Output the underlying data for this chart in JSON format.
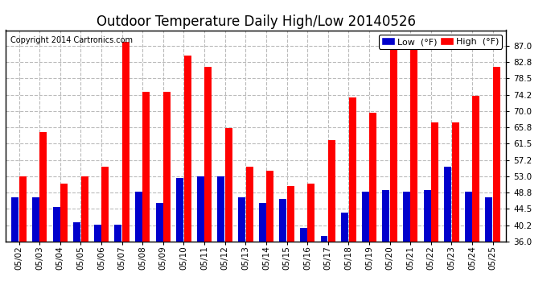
{
  "title": "Outdoor Temperature Daily High/Low 20140526",
  "copyright": "Copyright 2014 Cartronics.com",
  "dates": [
    "05/02",
    "05/03",
    "05/04",
    "05/05",
    "05/06",
    "05/07",
    "05/08",
    "05/09",
    "05/10",
    "05/11",
    "05/12",
    "05/13",
    "05/14",
    "05/15",
    "05/16",
    "05/17",
    "05/18",
    "05/19",
    "05/20",
    "05/21",
    "05/22",
    "05/23",
    "05/24",
    "05/25"
  ],
  "highs": [
    53.0,
    64.5,
    51.0,
    53.0,
    55.5,
    88.0,
    75.0,
    75.0,
    84.5,
    81.5,
    65.5,
    55.5,
    54.5,
    50.5,
    51.0,
    62.5,
    73.5,
    69.5,
    87.0,
    87.0,
    67.0,
    67.0,
    74.0,
    81.5
  ],
  "lows": [
    47.5,
    47.5,
    45.0,
    41.0,
    40.5,
    40.5,
    49.0,
    46.0,
    52.5,
    53.0,
    53.0,
    47.5,
    46.0,
    47.0,
    39.5,
    37.5,
    43.5,
    49.0,
    49.5,
    49.0,
    49.5,
    55.5,
    49.0,
    47.5
  ],
  "high_color": "#ff0000",
  "low_color": "#0000cc",
  "bg_color": "#ffffff",
  "grid_color": "#bbbbbb",
  "ylim": [
    36.0,
    91.0
  ],
  "yticks": [
    36.0,
    40.2,
    44.5,
    48.8,
    53.0,
    57.2,
    61.5,
    65.8,
    70.0,
    74.2,
    78.5,
    82.8,
    87.0
  ],
  "title_fontsize": 12,
  "tick_fontsize": 7.5,
  "legend_fontsize": 8,
  "bar_width": 0.35,
  "bar_sep": 0.37
}
